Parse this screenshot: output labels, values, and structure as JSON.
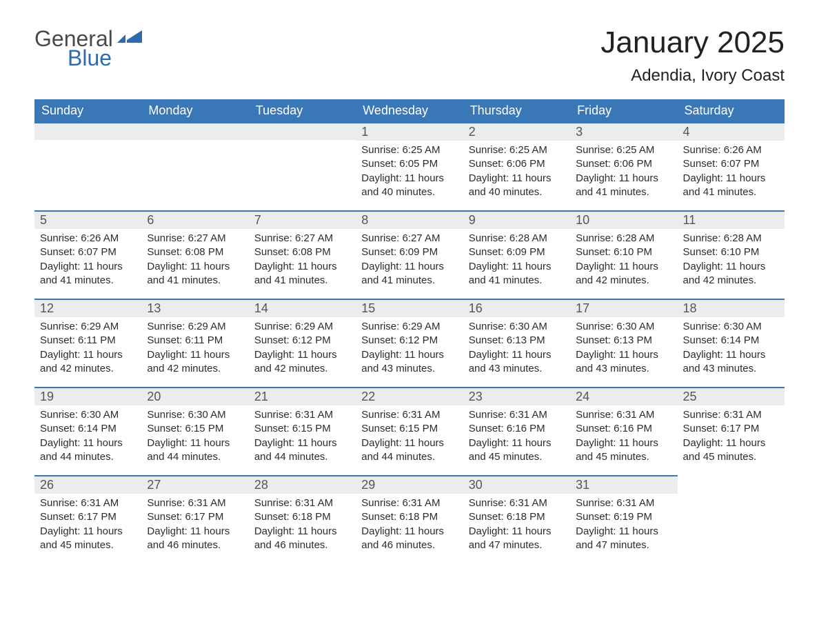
{
  "brand": {
    "general": "General",
    "blue": "Blue"
  },
  "title": "January 2025",
  "location": "Adendia, Ivory Coast",
  "colors": {
    "header_bg": "#3a77b7",
    "header_text": "#ffffff",
    "day_num_bg": "#ececec",
    "day_num_text": "#555555",
    "border": "#3a77b7",
    "text": "#2c2c2c",
    "brand_gray": "#4a4a4a",
    "brand_blue": "#2d6bb0"
  },
  "typography": {
    "month_title_pt": 44,
    "location_pt": 24,
    "weekday_pt": 18,
    "body_pt": 15,
    "logo_pt": 32
  },
  "weekdays": [
    "Sunday",
    "Monday",
    "Tuesday",
    "Wednesday",
    "Thursday",
    "Friday",
    "Saturday"
  ],
  "weeks": [
    [
      null,
      null,
      null,
      {
        "n": "1",
        "sunrise": "6:25 AM",
        "sunset": "6:05 PM",
        "daylight": "11 hours and 40 minutes."
      },
      {
        "n": "2",
        "sunrise": "6:25 AM",
        "sunset": "6:06 PM",
        "daylight": "11 hours and 40 minutes."
      },
      {
        "n": "3",
        "sunrise": "6:25 AM",
        "sunset": "6:06 PM",
        "daylight": "11 hours and 41 minutes."
      },
      {
        "n": "4",
        "sunrise": "6:26 AM",
        "sunset": "6:07 PM",
        "daylight": "11 hours and 41 minutes."
      }
    ],
    [
      {
        "n": "5",
        "sunrise": "6:26 AM",
        "sunset": "6:07 PM",
        "daylight": "11 hours and 41 minutes."
      },
      {
        "n": "6",
        "sunrise": "6:27 AM",
        "sunset": "6:08 PM",
        "daylight": "11 hours and 41 minutes."
      },
      {
        "n": "7",
        "sunrise": "6:27 AM",
        "sunset": "6:08 PM",
        "daylight": "11 hours and 41 minutes."
      },
      {
        "n": "8",
        "sunrise": "6:27 AM",
        "sunset": "6:09 PM",
        "daylight": "11 hours and 41 minutes."
      },
      {
        "n": "9",
        "sunrise": "6:28 AM",
        "sunset": "6:09 PM",
        "daylight": "11 hours and 41 minutes."
      },
      {
        "n": "10",
        "sunrise": "6:28 AM",
        "sunset": "6:10 PM",
        "daylight": "11 hours and 42 minutes."
      },
      {
        "n": "11",
        "sunrise": "6:28 AM",
        "sunset": "6:10 PM",
        "daylight": "11 hours and 42 minutes."
      }
    ],
    [
      {
        "n": "12",
        "sunrise": "6:29 AM",
        "sunset": "6:11 PM",
        "daylight": "11 hours and 42 minutes."
      },
      {
        "n": "13",
        "sunrise": "6:29 AM",
        "sunset": "6:11 PM",
        "daylight": "11 hours and 42 minutes."
      },
      {
        "n": "14",
        "sunrise": "6:29 AM",
        "sunset": "6:12 PM",
        "daylight": "11 hours and 42 minutes."
      },
      {
        "n": "15",
        "sunrise": "6:29 AM",
        "sunset": "6:12 PM",
        "daylight": "11 hours and 43 minutes."
      },
      {
        "n": "16",
        "sunrise": "6:30 AM",
        "sunset": "6:13 PM",
        "daylight": "11 hours and 43 minutes."
      },
      {
        "n": "17",
        "sunrise": "6:30 AM",
        "sunset": "6:13 PM",
        "daylight": "11 hours and 43 minutes."
      },
      {
        "n": "18",
        "sunrise": "6:30 AM",
        "sunset": "6:14 PM",
        "daylight": "11 hours and 43 minutes."
      }
    ],
    [
      {
        "n": "19",
        "sunrise": "6:30 AM",
        "sunset": "6:14 PM",
        "daylight": "11 hours and 44 minutes."
      },
      {
        "n": "20",
        "sunrise": "6:30 AM",
        "sunset": "6:15 PM",
        "daylight": "11 hours and 44 minutes."
      },
      {
        "n": "21",
        "sunrise": "6:31 AM",
        "sunset": "6:15 PM",
        "daylight": "11 hours and 44 minutes."
      },
      {
        "n": "22",
        "sunrise": "6:31 AM",
        "sunset": "6:15 PM",
        "daylight": "11 hours and 44 minutes."
      },
      {
        "n": "23",
        "sunrise": "6:31 AM",
        "sunset": "6:16 PM",
        "daylight": "11 hours and 45 minutes."
      },
      {
        "n": "24",
        "sunrise": "6:31 AM",
        "sunset": "6:16 PM",
        "daylight": "11 hours and 45 minutes."
      },
      {
        "n": "25",
        "sunrise": "6:31 AM",
        "sunset": "6:17 PM",
        "daylight": "11 hours and 45 minutes."
      }
    ],
    [
      {
        "n": "26",
        "sunrise": "6:31 AM",
        "sunset": "6:17 PM",
        "daylight": "11 hours and 45 minutes."
      },
      {
        "n": "27",
        "sunrise": "6:31 AM",
        "sunset": "6:17 PM",
        "daylight": "11 hours and 46 minutes."
      },
      {
        "n": "28",
        "sunrise": "6:31 AM",
        "sunset": "6:18 PM",
        "daylight": "11 hours and 46 minutes."
      },
      {
        "n": "29",
        "sunrise": "6:31 AM",
        "sunset": "6:18 PM",
        "daylight": "11 hours and 46 minutes."
      },
      {
        "n": "30",
        "sunrise": "6:31 AM",
        "sunset": "6:18 PM",
        "daylight": "11 hours and 47 minutes."
      },
      {
        "n": "31",
        "sunrise": "6:31 AM",
        "sunset": "6:19 PM",
        "daylight": "11 hours and 47 minutes."
      },
      null
    ]
  ],
  "labels": {
    "sunrise": "Sunrise:",
    "sunset": "Sunset:",
    "daylight": "Daylight:"
  }
}
